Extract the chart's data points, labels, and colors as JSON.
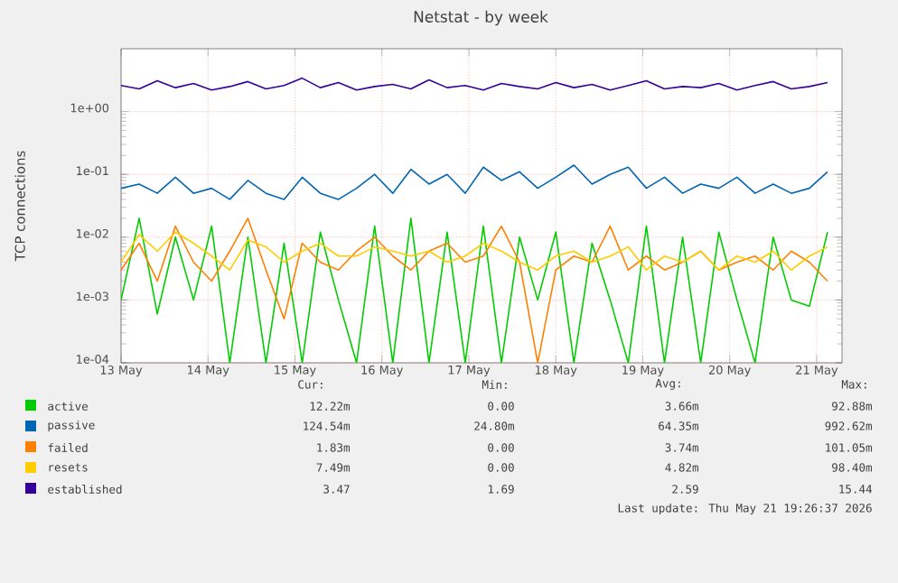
{
  "chart_data": {
    "type": "line",
    "title": "Netstat - by week",
    "ylabel": "TCP connections",
    "log": "y",
    "grid": true,
    "legend": "bottom",
    "xlim": [
      "2026-05-13T00:00",
      "2026-05-21T07:00"
    ],
    "xticks": [
      {
        "value": "2026-05-13",
        "label": "13 May"
      },
      {
        "value": "2026-05-14",
        "label": "14 May"
      },
      {
        "value": "2026-05-15",
        "label": "15 May"
      },
      {
        "value": "2026-05-16",
        "label": "16 May"
      },
      {
        "value": "2026-05-17",
        "label": "17 May"
      },
      {
        "value": "2026-05-18",
        "label": "18 May"
      },
      {
        "value": "2026-05-19",
        "label": "19 May"
      },
      {
        "value": "2026-05-20",
        "label": "20 May"
      },
      {
        "value": "2026-05-21",
        "label": "21 May"
      }
    ],
    "ylim": [
      0.0001,
      10
    ],
    "yticks": [
      {
        "value": 0.0001,
        "label": "1e-04"
      },
      {
        "value": 0.001,
        "label": "1e-03"
      },
      {
        "value": 0.01,
        "label": "1e-02"
      },
      {
        "value": 0.1,
        "label": "1e-01"
      },
      {
        "value": 1,
        "label": "1e+00"
      }
    ],
    "x": [
      "2026-05-13T00:00",
      "2026-05-13T05:00",
      "2026-05-13T10:00",
      "2026-05-13T15:00",
      "2026-05-13T20:00",
      "2026-05-14T01:00",
      "2026-05-14T06:00",
      "2026-05-14T11:00",
      "2026-05-14T16:00",
      "2026-05-14T21:00",
      "2026-05-15T02:00",
      "2026-05-15T07:00",
      "2026-05-15T12:00",
      "2026-05-15T17:00",
      "2026-05-15T22:00",
      "2026-05-16T03:00",
      "2026-05-16T08:00",
      "2026-05-16T13:00",
      "2026-05-16T18:00",
      "2026-05-16T23:00",
      "2026-05-17T04:00",
      "2026-05-17T09:00",
      "2026-05-17T14:00",
      "2026-05-17T19:00",
      "2026-05-18T00:00",
      "2026-05-18T05:00",
      "2026-05-18T10:00",
      "2026-05-18T15:00",
      "2026-05-18T20:00",
      "2026-05-19T01:00",
      "2026-05-19T06:00",
      "2026-05-19T11:00",
      "2026-05-19T16:00",
      "2026-05-19T21:00",
      "2026-05-20T02:00",
      "2026-05-20T07:00",
      "2026-05-20T12:00",
      "2026-05-20T17:00",
      "2026-05-20T22:00",
      "2026-05-21T03:00"
    ],
    "series": [
      {
        "name": "active",
        "color": "#00cc00",
        "values": [
          0.001,
          0.02,
          0.0006,
          0.01,
          0.001,
          0.015,
          0.0001,
          0.01,
          0.0001,
          0.008,
          0.0001,
          0.012,
          0.001,
          0.0001,
          0.015,
          0.0001,
          0.02,
          0.0001,
          0.012,
          0.0001,
          0.015,
          0.0001,
          0.01,
          0.001,
          0.012,
          0.0001,
          0.008,
          0.001,
          0.0001,
          0.015,
          0.0001,
          0.01,
          0.0001,
          0.012,
          0.001,
          0.0001,
          0.01,
          0.001,
          0.0008,
          0.012
        ]
      },
      {
        "name": "passive",
        "color": "#0066b3",
        "values": [
          0.06,
          0.07,
          0.05,
          0.09,
          0.05,
          0.06,
          0.04,
          0.08,
          0.05,
          0.04,
          0.09,
          0.05,
          0.04,
          0.06,
          0.1,
          0.05,
          0.12,
          0.07,
          0.1,
          0.05,
          0.13,
          0.08,
          0.11,
          0.06,
          0.09,
          0.14,
          0.07,
          0.1,
          0.13,
          0.06,
          0.09,
          0.05,
          0.07,
          0.06,
          0.09,
          0.05,
          0.07,
          0.05,
          0.06,
          0.11
        ]
      },
      {
        "name": "failed",
        "color": "#ff8000",
        "values": [
          0.003,
          0.008,
          0.002,
          0.015,
          0.004,
          0.002,
          0.006,
          0.02,
          0.003,
          0.0005,
          0.008,
          0.004,
          0.003,
          0.006,
          0.01,
          0.005,
          0.003,
          0.006,
          0.008,
          0.004,
          0.005,
          0.015,
          0.004,
          0.0001,
          0.003,
          0.005,
          0.004,
          0.015,
          0.003,
          0.005,
          0.003,
          0.004,
          0.006,
          0.003,
          0.004,
          0.005,
          0.003,
          0.006,
          0.004,
          0.002
        ]
      },
      {
        "name": "resets",
        "color": "#ffcc00",
        "values": [
          0.004,
          0.011,
          0.006,
          0.012,
          0.008,
          0.005,
          0.003,
          0.009,
          0.007,
          0.004,
          0.006,
          0.008,
          0.005,
          0.005,
          0.007,
          0.006,
          0.005,
          0.006,
          0.004,
          0.005,
          0.008,
          0.006,
          0.004,
          0.003,
          0.005,
          0.006,
          0.004,
          0.005,
          0.007,
          0.003,
          0.005,
          0.004,
          0.006,
          0.003,
          0.005,
          0.004,
          0.006,
          0.003,
          0.005,
          0.007
        ]
      },
      {
        "name": "established",
        "color": "#330099",
        "values": [
          2.6,
          2.3,
          3.1,
          2.4,
          2.8,
          2.2,
          2.5,
          3.0,
          2.3,
          2.6,
          3.4,
          2.4,
          2.9,
          2.2,
          2.5,
          2.7,
          2.3,
          3.2,
          2.4,
          2.6,
          2.2,
          2.8,
          2.5,
          2.3,
          2.9,
          2.4,
          2.7,
          2.2,
          2.6,
          3.1,
          2.3,
          2.5,
          2.4,
          2.8,
          2.2,
          2.6,
          3.0,
          2.3,
          2.5,
          2.9
        ]
      }
    ],
    "annotations": [
      "Cur:",
      "Min:",
      "Avg:",
      "Max:",
      "12.22m",
      "0.00",
      "3.66m",
      "92.88m",
      "124.54m",
      "24.80m",
      "64.35m",
      "992.62m",
      "1.83m",
      "0.00",
      "3.74m",
      "101.05m",
      "7.49m",
      "0.00",
      "4.82m",
      "98.40m",
      "3.47",
      "1.69",
      "2.59",
      "15.44",
      "Last update: Thu May 21 19:26:37 2026"
    ]
  }
}
